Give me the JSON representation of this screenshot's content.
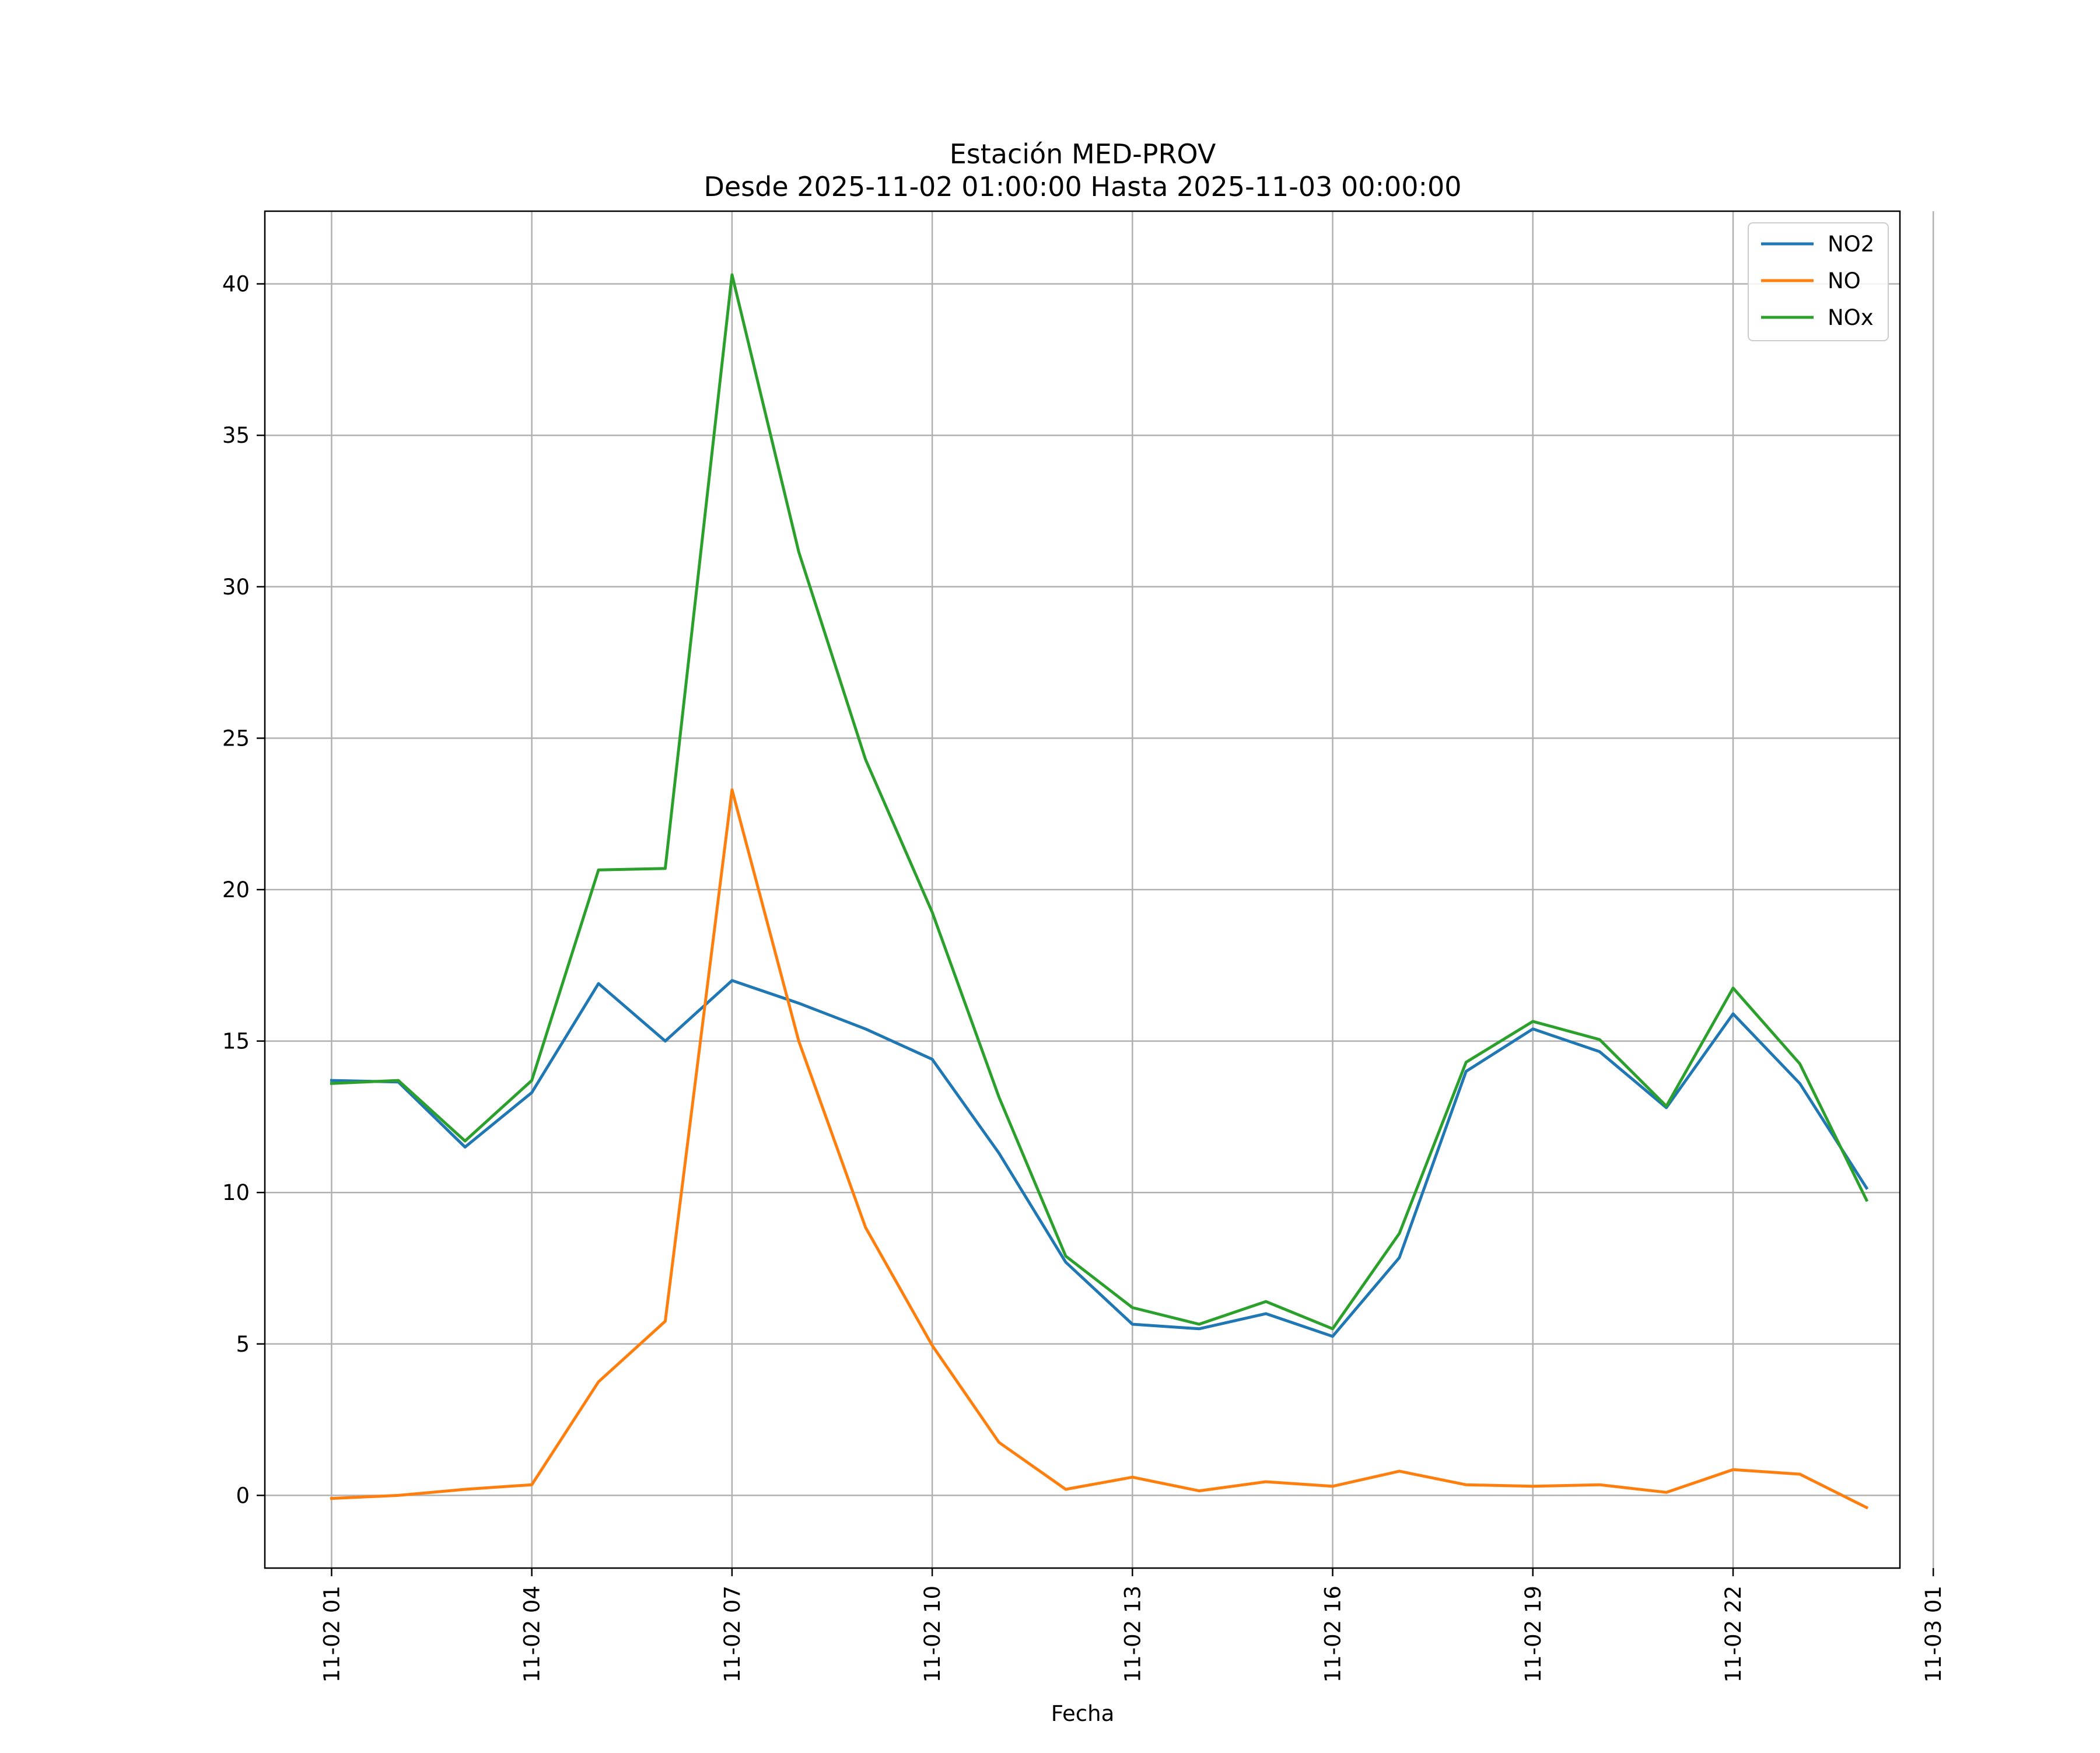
{
  "chart_data": {
    "type": "line",
    "title": "Estación MED-PROV",
    "subtitle": "Desde 2025-11-02 01:00:00 Hasta 2025-11-03 00:00:00",
    "xlabel": "Fecha",
    "ylabel": "",
    "x": [
      "2025-11-02 01:00",
      "2025-11-02 02:00",
      "2025-11-02 03:00",
      "2025-11-02 04:00",
      "2025-11-02 05:00",
      "2025-11-02 06:00",
      "2025-11-02 07:00",
      "2025-11-02 08:00",
      "2025-11-02 09:00",
      "2025-11-02 10:00",
      "2025-11-02 11:00",
      "2025-11-02 12:00",
      "2025-11-02 13:00",
      "2025-11-02 14:00",
      "2025-11-02 15:00",
      "2025-11-02 16:00",
      "2025-11-02 17:00",
      "2025-11-02 18:00",
      "2025-11-02 19:00",
      "2025-11-02 20:00",
      "2025-11-02 21:00",
      "2025-11-02 22:00",
      "2025-11-02 23:00",
      "2025-11-03 00:00"
    ],
    "xlim": [
      "2025-11-02 00:00:00",
      "2025-11-03 00:30:00"
    ],
    "xticks": [
      {
        "hour": 0,
        "label": "11-02 01"
      },
      {
        "hour": 3,
        "label": "11-02 04"
      },
      {
        "hour": 6,
        "label": "11-02 07"
      },
      {
        "hour": 9,
        "label": "11-02 10"
      },
      {
        "hour": 12,
        "label": "11-02 13"
      },
      {
        "hour": 15,
        "label": "11-02 16"
      },
      {
        "hour": 18,
        "label": "11-02 19"
      },
      {
        "hour": 21,
        "label": "11-02 22"
      },
      {
        "hour": 24,
        "label": "11-03 01"
      }
    ],
    "yticks": [
      0,
      5,
      10,
      15,
      20,
      25,
      30,
      35,
      40
    ],
    "ylim": [
      -2.4,
      42.4
    ],
    "grid": true,
    "legend_position": "top-right",
    "series": [
      {
        "name": "NO2",
        "color": "#1f77b4",
        "values": [
          13.7,
          13.65,
          11.5,
          13.3,
          16.9,
          15.0,
          17.0,
          16.25,
          15.4,
          14.4,
          11.3,
          7.7,
          5.65,
          5.5,
          6.0,
          5.25,
          7.85,
          14.0,
          15.4,
          14.65,
          12.8,
          15.9,
          13.6,
          10.15
        ]
      },
      {
        "name": "NO",
        "color": "#ff7f0e",
        "values": [
          -0.1,
          0.0,
          0.2,
          0.35,
          3.75,
          5.75,
          23.3,
          15.0,
          8.85,
          4.95,
          1.75,
          0.2,
          0.6,
          0.15,
          0.45,
          0.3,
          0.8,
          0.35,
          0.3,
          0.35,
          0.1,
          0.85,
          0.7,
          -0.4
        ]
      },
      {
        "name": "NOx",
        "color": "#2ca02c",
        "values": [
          13.6,
          13.7,
          11.7,
          13.7,
          20.65,
          20.7,
          40.3,
          31.15,
          24.3,
          19.25,
          13.15,
          7.9,
          6.2,
          5.65,
          6.4,
          5.5,
          8.65,
          14.3,
          15.65,
          15.05,
          12.85,
          16.75,
          14.25,
          9.75
        ]
      }
    ]
  }
}
